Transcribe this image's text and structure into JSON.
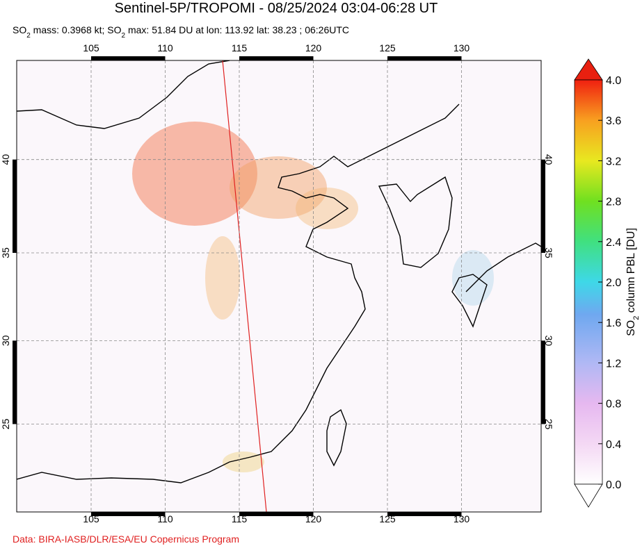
{
  "title": "Sentinel-5P/TROPOMI - 08/25/2024 03:04-06:28 UT",
  "subtitle": [
    "SO",
    "2",
    " mass: 0.3968 kt; SO",
    "2",
    " max: 51.84 DU at lon: 113.92 lat: 38.23 ; 06:26UTC"
  ],
  "map": {
    "lon_ticks": [
      105,
      110,
      115,
      120,
      125,
      130
    ],
    "lat_ticks": [
      25,
      30,
      35,
      40
    ]
  },
  "colorbar": {
    "label": [
      "SO",
      "2",
      " column PBL [DU]"
    ],
    "lim": [
      0,
      4
    ],
    "ticks": [
      {
        "value": 0,
        "label": "0.0"
      },
      0.4,
      0.8,
      1.2,
      1.6,
      {
        "value": 2,
        "label": "2.0"
      },
      2.4,
      2.8,
      3.2,
      3.6,
      {
        "value": 4,
        "label": "4.0"
      }
    ]
  },
  "credit": "Data: BIRA-IASB/DLR/ESA/EU Copernicus Program"
}
